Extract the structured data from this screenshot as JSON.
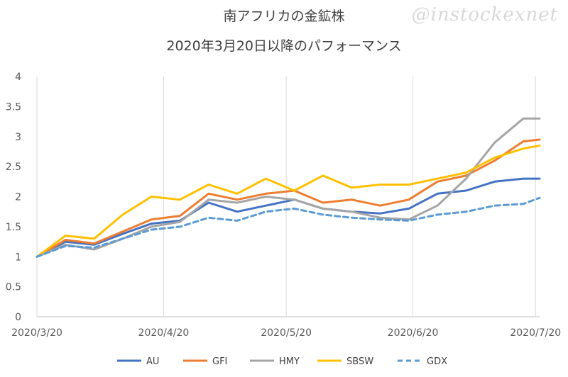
{
  "watermark": "@instockexnet",
  "chart_data": {
    "type": "line",
    "title": "南アフリカの金鉱株",
    "subtitle": "2020年3月20日以降のパフォーマンス",
    "x": [
      "2020/3/20",
      "2020/3/27",
      "2020/4/3",
      "2020/4/10",
      "2020/4/17",
      "2020/4/24",
      "2020/5/1",
      "2020/5/8",
      "2020/5/15",
      "2020/5/22",
      "2020/5/29",
      "2020/6/5",
      "2020/6/12",
      "2020/6/19",
      "2020/6/26",
      "2020/7/3",
      "2020/7/10",
      "2020/7/17",
      "2020/7/21"
    ],
    "x_tick_labels": [
      "2020/3/20",
      "2020/4/20",
      "2020/5/20",
      "2020/6/20",
      "2020/7/20"
    ],
    "ylim": [
      0,
      4
    ],
    "y_ticks": [
      "0",
      "0.5",
      "1",
      "1.5",
      "2",
      "2.5",
      "3",
      "3.5",
      "4"
    ],
    "grid": "vertical",
    "legend_position": "bottom",
    "series": [
      {
        "name": "AU",
        "color": "#4472C4",
        "dash": false,
        "values": [
          1.0,
          1.25,
          1.2,
          1.38,
          1.55,
          1.6,
          1.9,
          1.75,
          1.85,
          1.95,
          1.8,
          1.75,
          1.72,
          1.8,
          2.05,
          2.1,
          2.25,
          2.3,
          2.3
        ]
      },
      {
        "name": "GFI",
        "color": "#ED7D31",
        "dash": false,
        "values": [
          1.0,
          1.28,
          1.22,
          1.42,
          1.62,
          1.68,
          2.05,
          1.95,
          2.05,
          2.1,
          1.9,
          1.95,
          1.85,
          1.95,
          2.25,
          2.35,
          2.6,
          2.92,
          2.95
        ]
      },
      {
        "name": "HMY",
        "color": "#A5A5A5",
        "dash": false,
        "values": [
          1.0,
          1.2,
          1.12,
          1.3,
          1.5,
          1.58,
          1.95,
          1.9,
          2.0,
          1.95,
          1.8,
          1.75,
          1.65,
          1.62,
          1.85,
          2.3,
          2.9,
          3.3,
          3.3
        ]
      },
      {
        "name": "SBSW",
        "color": "#FFC000",
        "dash": false,
        "values": [
          1.0,
          1.35,
          1.3,
          1.7,
          2.0,
          1.95,
          2.2,
          2.05,
          2.3,
          2.1,
          2.35,
          2.15,
          2.2,
          2.2,
          2.3,
          2.4,
          2.65,
          2.8,
          2.85
        ]
      },
      {
        "name": "GDX",
        "color": "#5B9BD5",
        "dash": true,
        "values": [
          1.0,
          1.18,
          1.15,
          1.3,
          1.45,
          1.5,
          1.65,
          1.6,
          1.75,
          1.8,
          1.7,
          1.65,
          1.62,
          1.6,
          1.7,
          1.75,
          1.85,
          1.88,
          1.98
        ]
      }
    ]
  }
}
